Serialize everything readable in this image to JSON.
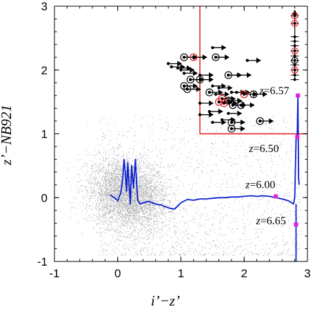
{
  "chart_data": {
    "type": "scatter",
    "title": "",
    "xlabel": "i’−z’",
    "ylabel": "z’−NB921",
    "xlim": [
      -1,
      3
    ],
    "ylim": [
      -1,
      3
    ],
    "xticks": [
      "-1",
      "0",
      "1",
      "2",
      "3"
    ],
    "yticks": [
      "-1",
      "0",
      "1",
      "2",
      "3"
    ],
    "grid": false,
    "legend": "none",
    "colors": {
      "background_points": "#9a9a9a",
      "track": "#0a1ed2",
      "selection": "#e8141e",
      "redshift_markers": "#e020e0",
      "objects": "#000000"
    },
    "selection_region": {
      "x_min": 1.3,
      "y_min": 1.0,
      "corner_x_right": 2.85
    },
    "track": {
      "name": "",
      "x": [
        -0.12,
        -0.05,
        0.0,
        0.05,
        0.08,
        0.1,
        0.12,
        0.14,
        0.16,
        0.18,
        0.2,
        0.22,
        0.25,
        0.28,
        0.3,
        0.32,
        0.35,
        0.4,
        0.5,
        0.6,
        0.7,
        0.8,
        0.9,
        1.0,
        1.1,
        1.2,
        1.3,
        1.4,
        1.5,
        1.6,
        1.7,
        1.8,
        1.9,
        2.0,
        2.1,
        2.2,
        2.3,
        2.4,
        2.5,
        2.6,
        2.7,
        2.78,
        2.8,
        2.82,
        2.83,
        2.84,
        2.85,
        2.86,
        2.87
      ],
      "y": [
        0.04,
        0.0,
        -0.05,
        0.08,
        0.3,
        0.6,
        0.4,
        0.1,
        0.55,
        0.2,
        -0.1,
        0.5,
        0.15,
        0.6,
        0.2,
        -0.05,
        -0.1,
        -0.08,
        -0.06,
        -0.1,
        -0.12,
        -0.16,
        -0.18,
        -0.08,
        -0.03,
        -0.04,
        -0.02,
        -0.02,
        -0.01,
        0.0,
        0.0,
        0.01,
        0.01,
        0.02,
        0.03,
        0.02,
        0.03,
        0.02,
        0.0,
        -0.02,
        -0.05,
        -0.1,
        0.0,
        0.9,
        0.95,
        1.0,
        1.6,
        0.3,
        0.2
      ],
      "vertical_drop": {
        "x": 2.82,
        "y_from": -0.1,
        "y_to": -1.0
      }
    },
    "redshift_labels": [
      {
        "label": "z=6.57",
        "z": "6.57",
        "x": 2.85,
        "y": 1.6
      },
      {
        "label": "z=6.50",
        "z": "6.50",
        "x": 2.84,
        "y": 0.95
      },
      {
        "label": "z=6.00",
        "z": "6.00",
        "x": 2.5,
        "y": 0.02
      },
      {
        "label": "z=6.65",
        "z": "6.65",
        "x": 2.82,
        "y": -0.42
      }
    ],
    "objects": [
      {
        "x": 1.5,
        "y": 2.35,
        "lower_limit_x": true,
        "circled": false,
        "red": false
      },
      {
        "x": 1.05,
        "y": 2.2,
        "lower_limit_x": true,
        "circled": true,
        "red": false
      },
      {
        "x": 1.2,
        "y": 2.2,
        "lower_limit_x": true,
        "circled": true,
        "red": true
      },
      {
        "x": 1.55,
        "y": 2.2,
        "lower_limit_x": true,
        "circled": true,
        "red": false
      },
      {
        "x": 2.05,
        "y": 2.15,
        "lower_limit_x": true,
        "circled": false,
        "red": false
      },
      {
        "x": 0.8,
        "y": 2.1,
        "lower_limit_x": true,
        "circled": false,
        "red": false
      },
      {
        "x": 0.85,
        "y": 2.05,
        "lower_limit_x": true,
        "circled": false,
        "red": false
      },
      {
        "x": 0.95,
        "y": 2.03,
        "lower_limit_x": true,
        "circled": false,
        "red": false
      },
      {
        "x": 1.0,
        "y": 2.0,
        "lower_limit_x": true,
        "circled": false,
        "red": false
      },
      {
        "x": 1.05,
        "y": 1.95,
        "lower_limit_x": true,
        "circled": false,
        "red": false
      },
      {
        "x": 1.3,
        "y": 1.92,
        "lower_limit_x": true,
        "circled": false,
        "red": false
      },
      {
        "x": 1.75,
        "y": 1.92,
        "lower_limit_x": true,
        "circled": true,
        "red": false
      },
      {
        "x": 1.9,
        "y": 1.92,
        "lower_limit_x": true,
        "circled": false,
        "red": false
      },
      {
        "x": 1.15,
        "y": 1.85,
        "lower_limit_x": true,
        "circled": true,
        "red": false
      },
      {
        "x": 1.3,
        "y": 1.85,
        "lower_limit_x": true,
        "circled": true,
        "red": false
      },
      {
        "x": 1.05,
        "y": 1.75,
        "lower_limit_x": true,
        "circled": true,
        "red": false
      },
      {
        "x": 1.1,
        "y": 1.7,
        "lower_limit_x": true,
        "circled": true,
        "red": false
      },
      {
        "x": 1.5,
        "y": 1.75,
        "lower_limit_x": true,
        "circled": false,
        "red": false
      },
      {
        "x": 1.6,
        "y": 1.72,
        "lower_limit_x": true,
        "circled": false,
        "red": false
      },
      {
        "x": 1.45,
        "y": 1.65,
        "lower_limit_x": true,
        "circled": true,
        "red": false
      },
      {
        "x": 1.55,
        "y": 1.62,
        "lower_limit_x": true,
        "circled": false,
        "red": false
      },
      {
        "x": 1.8,
        "y": 1.65,
        "lower_limit_x": true,
        "circled": false,
        "red": false
      },
      {
        "x": 1.88,
        "y": 1.65,
        "lower_limit_x": true,
        "circled": false,
        "red": false
      },
      {
        "x": 2.0,
        "y": 1.62,
        "lower_limit_x": true,
        "circled": true,
        "red": true
      },
      {
        "x": 2.15,
        "y": 1.62,
        "lower_limit_x": true,
        "circled": true,
        "red": false
      },
      {
        "x": 1.65,
        "y": 1.55,
        "lower_limit_x": true,
        "circled": true,
        "red": true
      },
      {
        "x": 1.75,
        "y": 1.52,
        "lower_limit_x": true,
        "circled": true,
        "red": false
      },
      {
        "x": 1.6,
        "y": 1.5,
        "lower_limit_x": true,
        "circled": true,
        "red": true
      },
      {
        "x": 1.68,
        "y": 1.48,
        "lower_limit_x": true,
        "circled": true,
        "red": true
      },
      {
        "x": 1.82,
        "y": 1.45,
        "lower_limit_x": true,
        "circled": true,
        "red": false
      },
      {
        "x": 1.95,
        "y": 1.45,
        "lower_limit_x": true,
        "circled": true,
        "red": false
      },
      {
        "x": 1.3,
        "y": 1.48,
        "lower_limit_x": true,
        "circled": false,
        "red": false
      },
      {
        "x": 1.45,
        "y": 1.35,
        "lower_limit_x": true,
        "circled": false,
        "red": false
      },
      {
        "x": 1.3,
        "y": 1.3,
        "lower_limit_x": true,
        "circled": false,
        "red": false
      },
      {
        "x": 1.75,
        "y": 1.32,
        "lower_limit_x": true,
        "circled": false,
        "red": false
      },
      {
        "x": 1.65,
        "y": 1.22,
        "lower_limit_x": true,
        "circled": false,
        "red": false
      },
      {
        "x": 1.5,
        "y": 1.18,
        "lower_limit_x": true,
        "circled": false,
        "red": false
      },
      {
        "x": 1.8,
        "y": 1.18,
        "lower_limit_x": true,
        "circled": true,
        "red": false
      },
      {
        "x": 2.25,
        "y": 1.2,
        "lower_limit_x": true,
        "circled": true,
        "red": false
      },
      {
        "x": 1.8,
        "y": 1.08,
        "lower_limit_x": true,
        "circled": true,
        "red": false
      }
    ],
    "column_objects": {
      "x": 2.8,
      "y": [
        2.85,
        2.73,
        2.52,
        2.45,
        2.38,
        2.3,
        2.22,
        2.15,
        2.08,
        2.0,
        1.92,
        1.85
      ],
      "circled": [
        true,
        true,
        false,
        false,
        false,
        true,
        false,
        true,
        false,
        true,
        false,
        false
      ],
      "red": [
        true,
        true,
        false,
        false,
        false,
        true,
        false,
        false,
        false,
        true,
        false,
        false
      ],
      "upper_arrow_y": 2.9
    }
  }
}
